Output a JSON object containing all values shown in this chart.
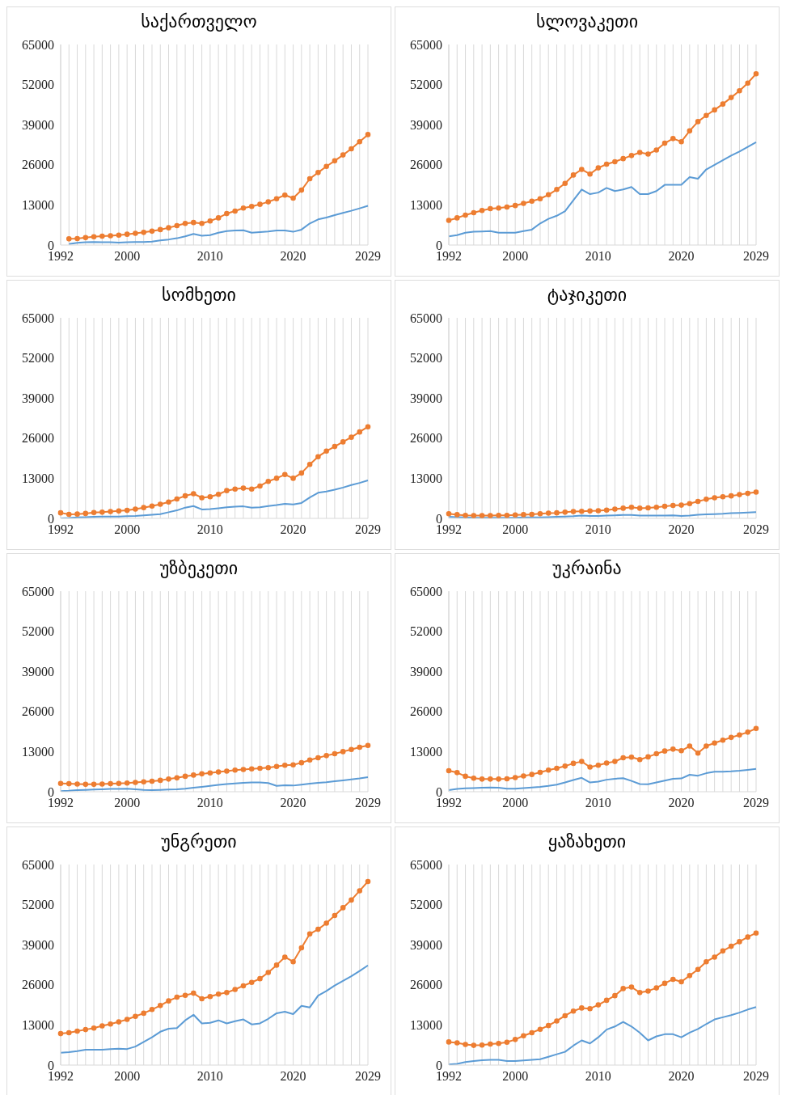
{
  "chart_data": [
    {
      "type": "line",
      "title": "საქართველო",
      "categories": [
        "1992",
        null,
        null,
        null,
        null,
        null,
        null,
        null,
        "2000",
        null,
        null,
        null,
        null,
        null,
        null,
        null,
        null,
        null,
        "2010",
        null,
        null,
        null,
        null,
        null,
        null,
        null,
        null,
        null,
        "2020",
        null,
        null,
        null,
        null,
        null,
        null,
        null,
        null,
        "2029"
      ],
      "ylim": [
        0,
        65000
      ],
      "yticks": [
        0,
        13000,
        26000,
        39000,
        52000,
        65000
      ],
      "grid": "x",
      "series": [
        {
          "color": "#ed7d31",
          "marker": "circle",
          "values": [
            null,
            2000,
            2100,
            2400,
            2700,
            2900,
            3000,
            3200,
            3500,
            3800,
            4100,
            4500,
            5000,
            5600,
            6300,
            7000,
            7300,
            7000,
            7800,
            8800,
            10200,
            11000,
            12000,
            12500,
            13200,
            14000,
            15000,
            16200,
            15200,
            17800,
            21500,
            23500,
            25500,
            27300,
            29200,
            31200,
            33500,
            35800
          ]
        },
        {
          "color": "#5b9bd5",
          "marker": "none",
          "values": [
            null,
            300,
            700,
            900,
            1000,
            900,
            900,
            800,
            900,
            1000,
            1000,
            1100,
            1500,
            1800,
            2200,
            2800,
            3600,
            3000,
            3200,
            4000,
            4500,
            4700,
            4800,
            4000,
            4200,
            4400,
            4700,
            4700,
            4300,
            5000,
            7000,
            8300,
            8900,
            9700,
            10400,
            11100,
            11900,
            12700
          ]
        }
      ]
    },
    {
      "type": "line",
      "title": "სლოვაკეთი",
      "categories": [
        "1992",
        null,
        null,
        null,
        null,
        null,
        null,
        null,
        "2000",
        null,
        null,
        null,
        null,
        null,
        null,
        null,
        null,
        null,
        "2010",
        null,
        null,
        null,
        null,
        null,
        null,
        null,
        null,
        null,
        "2020",
        null,
        null,
        null,
        null,
        null,
        null,
        null,
        null,
        "2029"
      ],
      "ylim": [
        0,
        65000
      ],
      "yticks": [
        0,
        13000,
        26000,
        39000,
        52000,
        65000
      ],
      "grid": "x",
      "series": [
        {
          "color": "#ed7d31",
          "marker": "circle",
          "values": [
            8000,
            8800,
            9700,
            10500,
            11200,
            11800,
            12000,
            12300,
            12800,
            13500,
            14200,
            15000,
            16300,
            18000,
            20000,
            22700,
            24500,
            23000,
            25000,
            26200,
            27000,
            28000,
            29000,
            30000,
            29500,
            30800,
            33000,
            34500,
            33500,
            37000,
            40000,
            42000,
            43800,
            45700,
            47800,
            50000,
            52500,
            55500
          ]
        },
        {
          "color": "#5b9bd5",
          "marker": "none",
          "values": [
            2800,
            3200,
            4000,
            4300,
            4400,
            4500,
            4000,
            4000,
            4000,
            4500,
            5000,
            7000,
            8500,
            9500,
            11000,
            14500,
            18000,
            16500,
            17000,
            18500,
            17500,
            18000,
            18800,
            16500,
            16500,
            17500,
            19500,
            19500,
            19500,
            22000,
            21500,
            24500,
            26000,
            27500,
            29000,
            30300,
            31800,
            33300
          ]
        }
      ]
    },
    {
      "type": "line",
      "title": "სომხეთი",
      "categories": [
        "1992",
        null,
        null,
        null,
        null,
        null,
        null,
        null,
        "2000",
        null,
        null,
        null,
        null,
        null,
        null,
        null,
        null,
        null,
        "2010",
        null,
        null,
        null,
        null,
        null,
        null,
        null,
        null,
        null,
        "2020",
        null,
        null,
        null,
        null,
        null,
        null,
        null,
        null,
        "2029"
      ],
      "ylim": [
        0,
        65000
      ],
      "yticks": [
        0,
        13000,
        26000,
        39000,
        52000,
        65000
      ],
      "grid": "x",
      "series": [
        {
          "color": "#ed7d31",
          "marker": "circle",
          "values": [
            1800,
            1300,
            1400,
            1600,
            1900,
            2000,
            2200,
            2400,
            2600,
            3000,
            3500,
            4000,
            4600,
            5300,
            6300,
            7300,
            8000,
            6700,
            7000,
            7800,
            9000,
            9500,
            9800,
            9500,
            10500,
            12000,
            13000,
            14200,
            13000,
            14700,
            17500,
            20000,
            21800,
            23300,
            24800,
            26300,
            28000,
            29700
          ]
        },
        {
          "color": "#5b9bd5",
          "marker": "none",
          "values": [
            0,
            100,
            300,
            400,
            500,
            600,
            600,
            600,
            700,
            800,
            1000,
            1200,
            1400,
            2000,
            2600,
            3500,
            4000,
            2900,
            3000,
            3300,
            3600,
            3800,
            3900,
            3500,
            3600,
            4000,
            4300,
            4700,
            4500,
            5000,
            6800,
            8300,
            8700,
            9300,
            10000,
            10800,
            11500,
            12300
          ]
        }
      ]
    },
    {
      "type": "line",
      "title": "ტაჯიკეთი",
      "categories": [
        "1992",
        null,
        null,
        null,
        null,
        null,
        null,
        null,
        "2000",
        null,
        null,
        null,
        null,
        null,
        null,
        null,
        null,
        null,
        "2010",
        null,
        null,
        null,
        null,
        null,
        null,
        null,
        null,
        null,
        "2020",
        null,
        null,
        null,
        null,
        null,
        null,
        null,
        null,
        "2029"
      ],
      "ylim": [
        0,
        65000
      ],
      "yticks": [
        0,
        13000,
        26000,
        39000,
        52000,
        65000
      ],
      "grid": "x",
      "series": [
        {
          "color": "#ed7d31",
          "marker": "circle",
          "values": [
            1500,
            1200,
            1000,
            900,
            900,
            900,
            1000,
            1000,
            1100,
            1200,
            1300,
            1500,
            1700,
            1800,
            2000,
            2200,
            2300,
            2400,
            2500,
            2700,
            3000,
            3300,
            3600,
            3300,
            3400,
            3600,
            3900,
            4200,
            4300,
            4800,
            5500,
            6200,
            6700,
            7000,
            7300,
            7700,
            8100,
            8500
          ]
        },
        {
          "color": "#5b9bd5",
          "marker": "none",
          "values": [
            500,
            400,
            300,
            200,
            200,
            200,
            200,
            200,
            200,
            300,
            300,
            300,
            400,
            500,
            600,
            700,
            900,
            800,
            800,
            900,
            1000,
            1100,
            1100,
            900,
            900,
            900,
            900,
            1000,
            800,
            900,
            1200,
            1300,
            1400,
            1500,
            1700,
            1800,
            1900,
            2000
          ]
        }
      ]
    },
    {
      "type": "line",
      "title": "უზბეკეთი",
      "categories": [
        "1992",
        null,
        null,
        null,
        null,
        null,
        null,
        null,
        "2000",
        null,
        null,
        null,
        null,
        null,
        null,
        null,
        null,
        null,
        "2010",
        null,
        null,
        null,
        null,
        null,
        null,
        null,
        null,
        null,
        "2020",
        null,
        null,
        null,
        null,
        null,
        null,
        null,
        null,
        "2029"
      ],
      "ylim": [
        0,
        65000
      ],
      "yticks": [
        0,
        13000,
        26000,
        39000,
        52000,
        65000
      ],
      "grid": "x",
      "series": [
        {
          "color": "#ed7d31",
          "marker": "circle",
          "values": [
            2700,
            2600,
            2500,
            2400,
            2400,
            2500,
            2600,
            2700,
            2800,
            3000,
            3200,
            3400,
            3700,
            4100,
            4500,
            5000,
            5400,
            5800,
            6100,
            6400,
            6700,
            7000,
            7200,
            7400,
            7600,
            7800,
            8200,
            8600,
            8700,
            9400,
            10300,
            11000,
            11700,
            12300,
            13000,
            13700,
            14400,
            15000
          ]
        },
        {
          "color": "#5b9bd5",
          "marker": "none",
          "values": [
            200,
            300,
            500,
            600,
            700,
            800,
            900,
            900,
            1000,
            800,
            600,
            500,
            600,
            700,
            800,
            1000,
            1300,
            1600,
            1900,
            2200,
            2500,
            2700,
            2900,
            3000,
            3000,
            2800,
            1900,
            2100,
            2000,
            2300,
            2600,
            2900,
            3100,
            3400,
            3700,
            4000,
            4300,
            4700
          ]
        }
      ]
    },
    {
      "type": "line",
      "title": "უკრაინა",
      "categories": [
        "1992",
        null,
        null,
        null,
        null,
        null,
        null,
        null,
        "2000",
        null,
        null,
        null,
        null,
        null,
        null,
        null,
        null,
        null,
        "2010",
        null,
        null,
        null,
        null,
        null,
        null,
        null,
        null,
        null,
        "2020",
        null,
        null,
        null,
        null,
        null,
        null,
        null,
        null,
        "2029"
      ],
      "ylim": [
        0,
        65000
      ],
      "yticks": [
        0,
        13000,
        26000,
        39000,
        52000,
        65000
      ],
      "grid": "x",
      "series": [
        {
          "color": "#ed7d31",
          "marker": "circle",
          "values": [
            6800,
            6200,
            5000,
            4400,
            4100,
            4100,
            4100,
            4200,
            4600,
            5100,
            5600,
            6300,
            7000,
            7600,
            8300,
            9200,
            9800,
            8000,
            8600,
            9300,
            9800,
            11000,
            11200,
            10400,
            11300,
            12300,
            13200,
            13800,
            13300,
            14800,
            12500,
            14800,
            15800,
            16700,
            17600,
            18400,
            19300,
            20500
          ]
        },
        {
          "color": "#5b9bd5",
          "marker": "none",
          "values": [
            500,
            900,
            1100,
            1200,
            1300,
            1400,
            1300,
            1000,
            1000,
            1200,
            1400,
            1600,
            1900,
            2300,
            3000,
            3800,
            4500,
            3000,
            3300,
            3900,
            4200,
            4400,
            3500,
            2500,
            2400,
            3000,
            3600,
            4200,
            4300,
            5500,
            5200,
            6000,
            6500,
            6500,
            6600,
            6800,
            7100,
            7400
          ]
        }
      ]
    },
    {
      "type": "line",
      "title": "უნგრეთი",
      "categories": [
        "1992",
        null,
        null,
        null,
        null,
        null,
        null,
        null,
        "2000",
        null,
        null,
        null,
        null,
        null,
        null,
        null,
        null,
        null,
        "2010",
        null,
        null,
        null,
        null,
        null,
        null,
        null,
        null,
        null,
        "2020",
        null,
        null,
        null,
        null,
        null,
        null,
        null,
        null,
        "2029"
      ],
      "ylim": [
        0,
        65000
      ],
      "yticks": [
        0,
        13000,
        26000,
        39000,
        52000,
        65000
      ],
      "grid": "x",
      "series": [
        {
          "color": "#ed7d31",
          "marker": "circle",
          "values": [
            10200,
            10500,
            11000,
            11500,
            12000,
            12700,
            13300,
            14000,
            14800,
            15800,
            16800,
            18000,
            19300,
            20800,
            22000,
            22600,
            23300,
            21500,
            22200,
            23000,
            23500,
            24500,
            25700,
            26800,
            28000,
            30000,
            32400,
            35000,
            33500,
            38000,
            42500,
            44000,
            46000,
            48500,
            51000,
            53500,
            56500,
            59500
          ]
        },
        {
          "color": "#5b9bd5",
          "marker": "none",
          "values": [
            4000,
            4200,
            4500,
            5000,
            5000,
            5000,
            5200,
            5300,
            5200,
            6000,
            7500,
            9000,
            10800,
            11800,
            12000,
            14500,
            16300,
            13500,
            13700,
            14500,
            13500,
            14200,
            14800,
            13200,
            13500,
            15000,
            16800,
            17300,
            16500,
            19200,
            18700,
            22500,
            24000,
            25800,
            27300,
            28800,
            30500,
            32300
          ]
        }
      ]
    },
    {
      "type": "line",
      "title": "ყაზახეთი",
      "categories": [
        "1992",
        null,
        null,
        null,
        null,
        null,
        null,
        null,
        "2000",
        null,
        null,
        null,
        null,
        null,
        null,
        null,
        null,
        null,
        "2010",
        null,
        null,
        null,
        null,
        null,
        null,
        null,
        null,
        null,
        "2020",
        null,
        null,
        null,
        null,
        null,
        null,
        null,
        null,
        "2029"
      ],
      "ylim": [
        0,
        65000
      ],
      "yticks": [
        0,
        13000,
        26000,
        39000,
        52000,
        65000
      ],
      "grid": "x",
      "series": [
        {
          "color": "#ed7d31",
          "marker": "circle",
          "values": [
            7500,
            7200,
            6700,
            6400,
            6500,
            6800,
            7000,
            7400,
            8300,
            9500,
            10500,
            11600,
            12800,
            14300,
            16000,
            17500,
            18500,
            18300,
            19500,
            21000,
            22500,
            24800,
            25300,
            23500,
            24000,
            25000,
            26500,
            27800,
            27000,
            29000,
            31000,
            33500,
            35000,
            37000,
            38500,
            40000,
            41500,
            42800
          ]
        },
        {
          "color": "#5b9bd5",
          "marker": "none",
          "values": [
            200,
            400,
            1000,
            1300,
            1600,
            1700,
            1700,
            1300,
            1300,
            1500,
            1700,
            1900,
            2700,
            3500,
            4300,
            6300,
            8000,
            7000,
            9000,
            11500,
            12500,
            14000,
            12500,
            10500,
            8000,
            9300,
            10000,
            10000,
            9000,
            10500,
            11700,
            13300,
            14800,
            15500,
            16200,
            17000,
            18000,
            18800
          ]
        }
      ]
    }
  ]
}
